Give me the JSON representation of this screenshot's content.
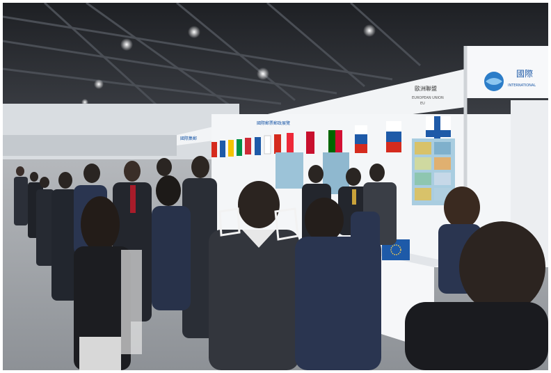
{
  "photo": {
    "subject": "exhibition-hall-booth-visit",
    "signs": {
      "booth_header_left": "國際集郵",
      "booth_header_mid": "國際郵票郵政展覽",
      "eu_chinese": "歐洲聯盟",
      "eu_english": "EUROPEAN UNION",
      "eu_sub": "EU",
      "corner_brand": "國際",
      "corner_sub": "INTERNATIONAL"
    },
    "colors": {
      "ceiling": "#2b2d31",
      "wall": "#e9ecef",
      "floor": "#9a9ea3",
      "booth_panel": "#f4f6f8",
      "accent_blue": "#1e5aa8",
      "suit_dark": "#23262d",
      "suit_navy": "#2a3550"
    }
  }
}
